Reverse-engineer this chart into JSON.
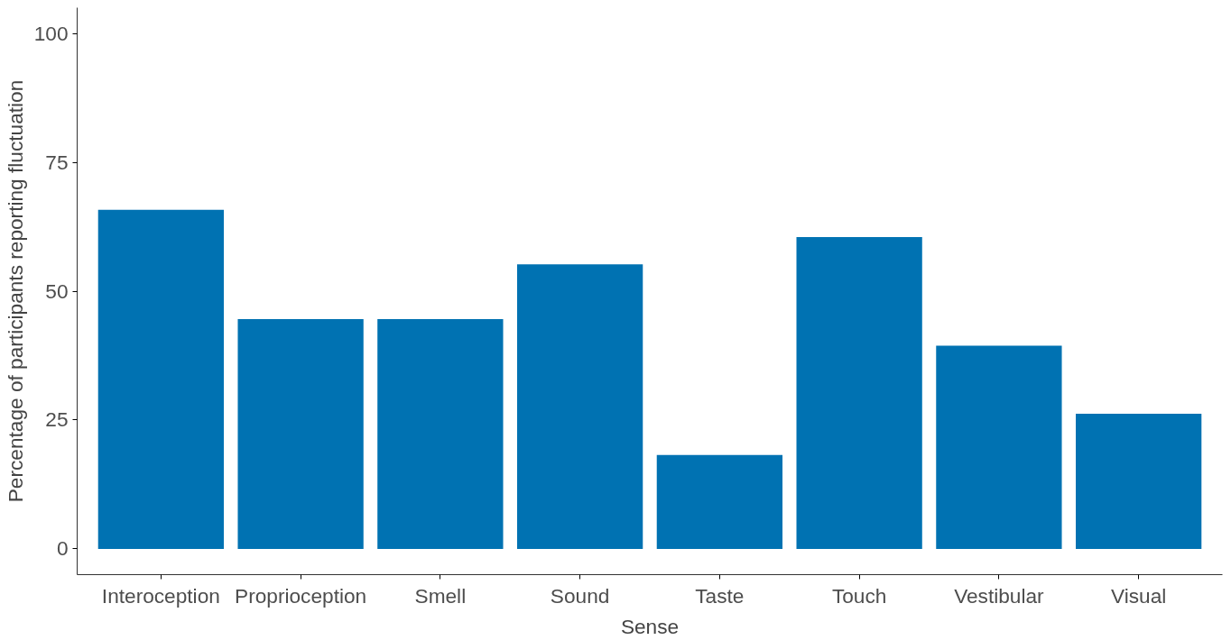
{
  "chart_data": {
    "type": "bar",
    "xlabel": "Sense",
    "ylabel": "Percentage of participants reporting fluctuation",
    "categories": [
      "Interoception",
      "Proprioception",
      "Smell",
      "Sound",
      "Taste",
      "Touch",
      "Vestibular",
      "Visual"
    ],
    "values": [
      65.8,
      44.6,
      44.6,
      55.2,
      18.2,
      60.5,
      39.4,
      26.2
    ],
    "color": "#0072b2",
    "ylim": [
      -5,
      105
    ],
    "yticks": [
      0,
      25,
      50,
      75,
      100
    ],
    "grid": false
  }
}
